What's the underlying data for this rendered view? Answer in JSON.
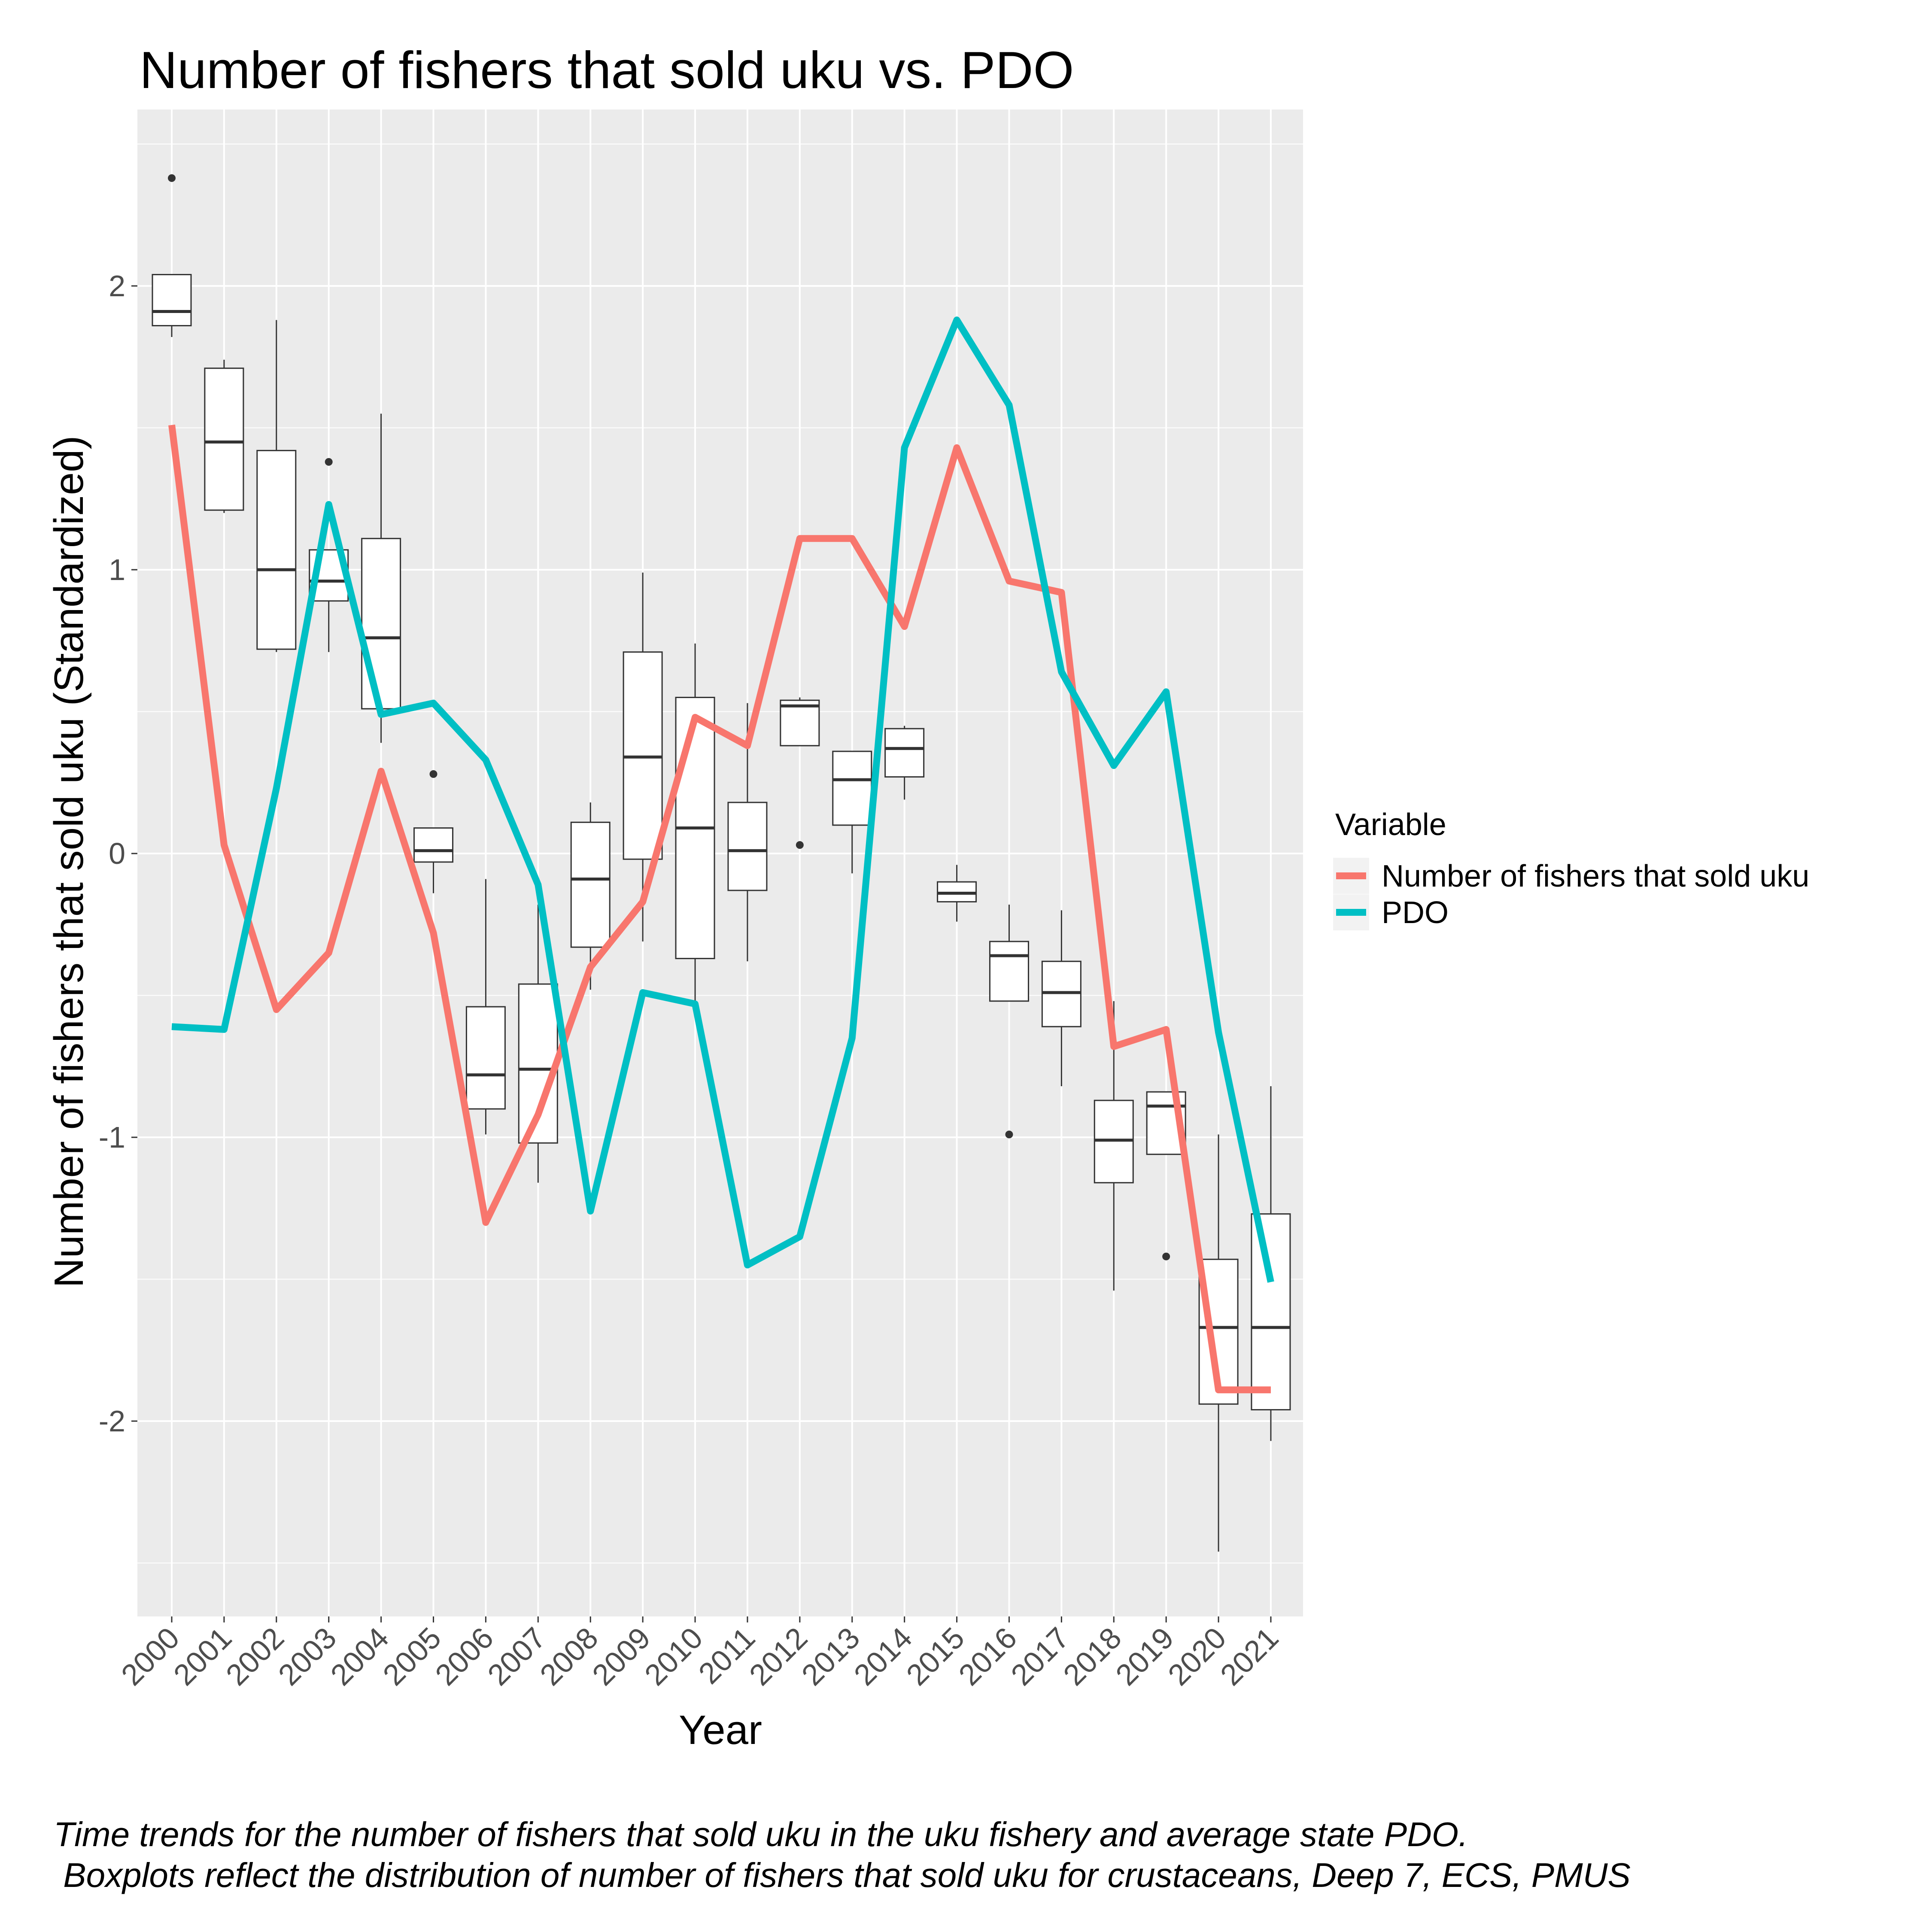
{
  "chart_data": {
    "type": "line",
    "title": "Number of fishers that sold uku vs. PDO",
    "xlabel": "Year",
    "ylabel": "Number of fishers that sold uku (Standardized)",
    "categories": [
      "2000",
      "2001",
      "2002",
      "2003",
      "2004",
      "2005",
      "2006",
      "2007",
      "2008",
      "2009",
      "2010",
      "2011",
      "2012",
      "2013",
      "2014",
      "2015",
      "2016",
      "2017",
      "2018",
      "2019",
      "2020",
      "2021"
    ],
    "y_ticks": [
      -2,
      -1,
      0,
      1,
      2
    ],
    "y_tick_labels": [
      "-2",
      "-1",
      "0",
      "1",
      "2"
    ],
    "ylim": [
      -2.7,
      2.6
    ],
    "grid": true,
    "legend": {
      "title": "Variable",
      "position": "right"
    },
    "series": [
      {
        "name": "Number of fishers that sold uku",
        "color": "#F8766D",
        "values": [
          1.51,
          0.03,
          -0.55,
          -0.35,
          0.29,
          -0.28,
          -1.3,
          -0.92,
          -0.4,
          -0.17,
          0.48,
          0.38,
          1.11,
          1.11,
          0.8,
          1.43,
          0.96,
          0.92,
          -0.68,
          -0.62,
          -1.89,
          -1.89
        ]
      },
      {
        "name": "PDO",
        "color": "#00BFC4",
        "values": [
          -0.61,
          -0.62,
          0.23,
          1.23,
          0.49,
          0.53,
          0.33,
          -0.11,
          -1.26,
          -0.49,
          -0.53,
          -1.45,
          -1.35,
          -0.65,
          1.43,
          1.88,
          1.58,
          0.64,
          0.31,
          0.57,
          -0.63,
          -1.51
        ]
      }
    ],
    "boxplots": [
      {
        "x": "2000",
        "min": 1.82,
        "q1": 1.86,
        "median": 1.91,
        "q3": 2.04,
        "max": 2.04,
        "outliers": [
          2.38
        ]
      },
      {
        "x": "2001",
        "min": 1.2,
        "q1": 1.21,
        "median": 1.45,
        "q3": 1.71,
        "max": 1.74,
        "outliers": []
      },
      {
        "x": "2002",
        "min": 0.71,
        "q1": 0.72,
        "median": 1.0,
        "q3": 1.42,
        "max": 1.88,
        "outliers": []
      },
      {
        "x": "2003",
        "min": 0.71,
        "q1": 0.89,
        "median": 0.96,
        "q3": 1.07,
        "max": 1.07,
        "outliers": [
          1.38
        ]
      },
      {
        "x": "2004",
        "min": 0.39,
        "q1": 0.51,
        "median": 0.76,
        "q3": 1.11,
        "max": 1.55,
        "outliers": []
      },
      {
        "x": "2005",
        "min": -0.14,
        "q1": -0.03,
        "median": 0.01,
        "q3": 0.09,
        "max": 0.09,
        "outliers": [
          0.28
        ]
      },
      {
        "x": "2006",
        "min": -0.99,
        "q1": -0.9,
        "median": -0.78,
        "q3": -0.54,
        "max": -0.09,
        "outliers": []
      },
      {
        "x": "2007",
        "min": -1.16,
        "q1": -1.02,
        "median": -0.76,
        "q3": -0.46,
        "max": -0.18,
        "outliers": []
      },
      {
        "x": "2008",
        "min": -0.48,
        "q1": -0.33,
        "median": -0.09,
        "q3": 0.11,
        "max": 0.18,
        "outliers": []
      },
      {
        "x": "2009",
        "min": -0.31,
        "q1": -0.02,
        "median": 0.34,
        "q3": 0.71,
        "max": 0.99,
        "outliers": []
      },
      {
        "x": "2010",
        "min": -0.52,
        "q1": -0.37,
        "median": 0.09,
        "q3": 0.55,
        "max": 0.74,
        "outliers": []
      },
      {
        "x": "2011",
        "min": -0.38,
        "q1": -0.13,
        "median": 0.01,
        "q3": 0.18,
        "max": 0.53,
        "outliers": []
      },
      {
        "x": "2012",
        "min": 0.38,
        "q1": 0.38,
        "median": 0.52,
        "q3": 0.54,
        "max": 0.55,
        "outliers": [
          0.03
        ]
      },
      {
        "x": "2013",
        "min": -0.07,
        "q1": 0.1,
        "median": 0.26,
        "q3": 0.36,
        "max": 0.36,
        "outliers": []
      },
      {
        "x": "2014",
        "min": 0.19,
        "q1": 0.27,
        "median": 0.37,
        "q3": 0.44,
        "max": 0.45,
        "outliers": []
      },
      {
        "x": "2015",
        "min": -0.24,
        "q1": -0.17,
        "median": -0.14,
        "q3": -0.1,
        "max": -0.04,
        "outliers": []
      },
      {
        "x": "2016",
        "min": -0.52,
        "q1": -0.52,
        "median": -0.36,
        "q3": -0.31,
        "max": -0.18,
        "outliers": [
          -0.99
        ]
      },
      {
        "x": "2017",
        "min": -0.82,
        "q1": -0.61,
        "median": -0.49,
        "q3": -0.38,
        "max": -0.2,
        "outliers": []
      },
      {
        "x": "2018",
        "min": -1.54,
        "q1": -1.16,
        "median": -1.01,
        "q3": -0.87,
        "max": -0.52,
        "outliers": []
      },
      {
        "x": "2019",
        "min": -1.06,
        "q1": -1.06,
        "median": -0.89,
        "q3": -0.84,
        "max": -0.84,
        "outliers": [
          -1.42
        ]
      },
      {
        "x": "2020",
        "min": -2.46,
        "q1": -1.94,
        "median": -1.67,
        "q3": -1.43,
        "max": -0.99,
        "outliers": []
      },
      {
        "x": "2021",
        "min": -2.07,
        "q1": -1.96,
        "median": -1.67,
        "q3": -1.27,
        "max": -0.82,
        "outliers": []
      }
    ],
    "caption_lines": [
      "Time trends for the number of fishers that sold uku in the uku fishery and average state PDO.",
      " Boxplots reflect the distribution of number of fishers that sold uku for crustaceans, Deep 7, ECS, PMUS"
    ]
  }
}
